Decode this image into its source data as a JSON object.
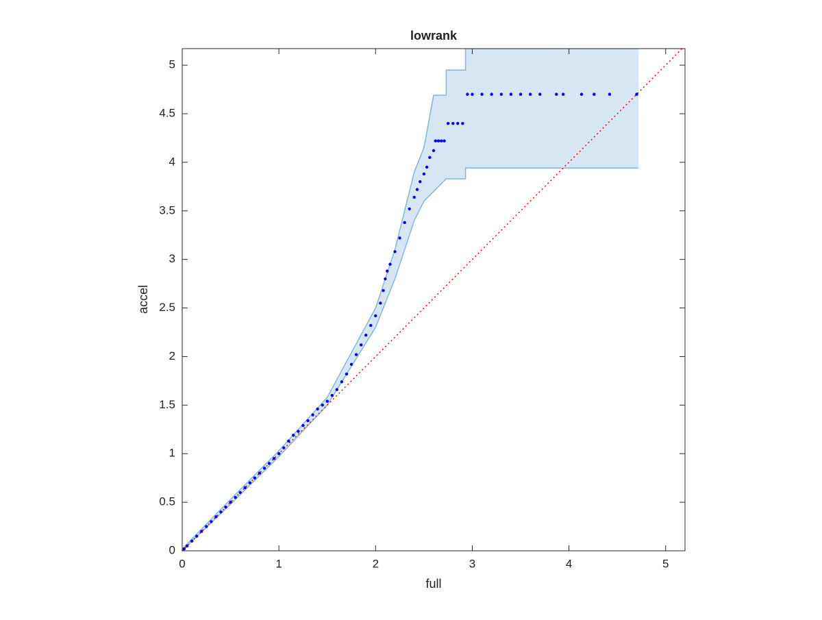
{
  "chart_data": {
    "type": "scatter",
    "title": "lowrank",
    "x_label": "full",
    "y_label": "accel",
    "xlim": [
      0,
      5.2
    ],
    "ylim": [
      0,
      5.17
    ],
    "xticks": [
      0,
      1,
      2,
      3,
      4,
      5
    ],
    "yticks": [
      0,
      0.5,
      1,
      1.5,
      2,
      2.5,
      3,
      3.5,
      4,
      4.5,
      5
    ],
    "series": [
      {
        "color": "#0000ff",
        "x": [
          0.02,
          0.05,
          0.1,
          0.15,
          0.2,
          0.25,
          0.3,
          0.35,
          0.4,
          0.45,
          0.5,
          0.55,
          0.6,
          0.65,
          0.7,
          0.75,
          0.8,
          0.85,
          0.9,
          0.95,
          1.0,
          1.05,
          1.1,
          1.15,
          1.2,
          1.25,
          1.3,
          1.35,
          1.4,
          1.45,
          1.5,
          1.55,
          1.6,
          1.65,
          1.7,
          1.75,
          1.8,
          1.85,
          1.9,
          1.95,
          2.0,
          2.05,
          2.08,
          2.1,
          2.12,
          2.15,
          2.2,
          2.25,
          2.3,
          2.35,
          2.4,
          2.43,
          2.46,
          2.5,
          2.53,
          2.56,
          2.6,
          2.62,
          2.65,
          2.68,
          2.71,
          2.75,
          2.8,
          2.85,
          2.9,
          2.95,
          3.0,
          3.1,
          3.2,
          3.3,
          3.4,
          3.5,
          3.6,
          3.7,
          3.87,
          3.94,
          4.13,
          4.26,
          4.42,
          4.7
        ],
        "y": [
          0.02,
          0.05,
          0.1,
          0.15,
          0.2,
          0.25,
          0.3,
          0.35,
          0.4,
          0.45,
          0.5,
          0.55,
          0.6,
          0.65,
          0.7,
          0.75,
          0.8,
          0.85,
          0.9,
          0.95,
          1.0,
          1.06,
          1.13,
          1.19,
          1.23,
          1.29,
          1.34,
          1.4,
          1.46,
          1.5,
          1.54,
          1.6,
          1.66,
          1.74,
          1.82,
          1.92,
          2.02,
          2.12,
          2.22,
          2.32,
          2.42,
          2.55,
          2.68,
          2.8,
          2.88,
          2.95,
          3.08,
          3.22,
          3.38,
          3.52,
          3.64,
          3.72,
          3.8,
          3.88,
          3.95,
          4.05,
          4.12,
          4.22,
          4.22,
          4.22,
          4.22,
          4.4,
          4.4,
          4.4,
          4.4,
          4.7,
          4.7,
          4.7,
          4.7,
          4.7,
          4.7,
          4.7,
          4.7,
          4.7,
          4.7,
          4.7,
          4.7,
          4.7,
          4.7,
          4.7
        ]
      }
    ],
    "band": {
      "color": "#d6e7f3",
      "edge": "#7fb7dc",
      "x": [
        0,
        0.5,
        1,
        1.5,
        2,
        2.2,
        2.4,
        2.5,
        2.6,
        2.73,
        2.73,
        2.93,
        2.93,
        4.72
      ],
      "upper": [
        0.02,
        0.53,
        1.03,
        1.58,
        2.5,
        3.1,
        3.9,
        4.15,
        4.69,
        4.69,
        4.95,
        4.95,
        5.17,
        5.17
      ],
      "lower": [
        0,
        0.48,
        0.97,
        1.5,
        2.3,
        2.8,
        3.4,
        3.6,
        3.7,
        3.83,
        3.83,
        3.83,
        3.94,
        3.94
      ]
    },
    "reference": {
      "color": "#ff0000",
      "x": [
        0,
        5.17
      ],
      "y": [
        0,
        5.17
      ]
    }
  }
}
